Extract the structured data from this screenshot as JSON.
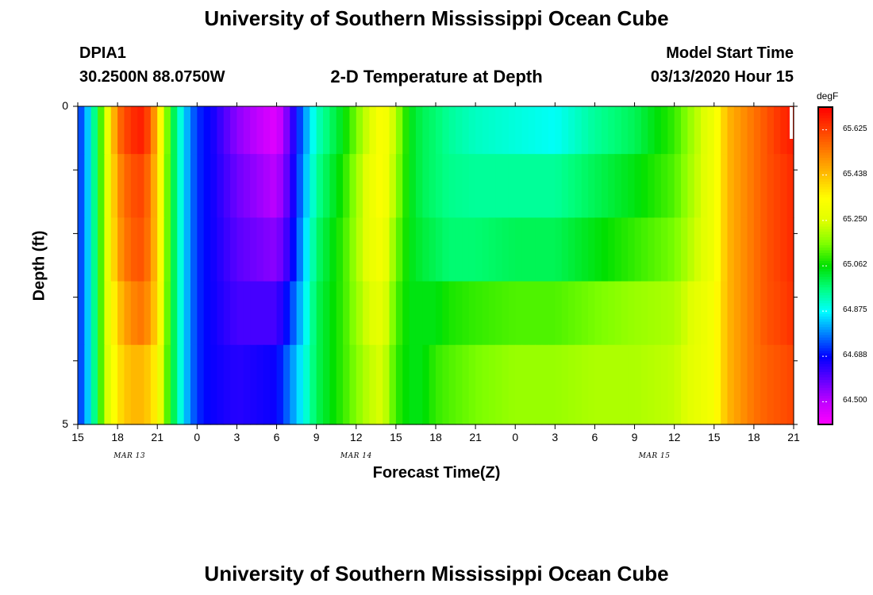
{
  "header": {
    "title_top": "University of Southern Mississippi Ocean Cube",
    "station_id": "DPIA1",
    "station_coords": "30.2500N 88.0750W",
    "plot_title": "2-D Temperature at Depth",
    "model_start_label": "Model Start Time",
    "model_start_value": "03/13/2020 Hour 15",
    "title_bottom": "University of Southern Mississippi Ocean Cube"
  },
  "colorbar": {
    "unit": "degF",
    "ticks": [
      "65.625",
      "65.438",
      "65.250",
      "65.062",
      "64.875",
      "64.688",
      "64.500"
    ],
    "range": [
      64.406,
      65.719
    ],
    "colors": [
      "#ff00ff",
      "#c000ff",
      "#6000ff",
      "#0000ff",
      "#0080ff",
      "#00ffff",
      "#00ff80",
      "#00e000",
      "#80ff00",
      "#e0ff00",
      "#ffff00",
      "#ffc000",
      "#ff8000",
      "#ff4000",
      "#ff0000"
    ]
  },
  "chart_data": {
    "type": "heatmap",
    "title": "2-D Temperature at Depth",
    "xlabel": "Forecast Time(Z)",
    "ylabel": "Depth (ft)",
    "x_tick_labels": [
      "15",
      "18",
      "21",
      "0",
      "3",
      "6",
      "9",
      "12",
      "15",
      "18",
      "21",
      "0",
      "3",
      "6",
      "9",
      "12",
      "15",
      "18",
      "21"
    ],
    "date_labels": [
      {
        "label": "MAR 13",
        "tick_index": 1.3
      },
      {
        "label": "MAR 14",
        "tick_index": 7.0
      },
      {
        "label": "MAR 15",
        "tick_index": 14.5
      }
    ],
    "y_tick_labels": [
      "0",
      "5"
    ],
    "ylim": [
      0,
      5
    ],
    "x_range_hours": [
      0,
      54
    ],
    "depth_bands": [
      0.25,
      1.25,
      2.25,
      3.25,
      4.25,
      4.75
    ],
    "time_knots_hours": [
      0,
      1,
      2,
      3,
      4,
      5,
      6,
      7,
      8,
      9,
      10,
      12,
      15,
      16,
      17,
      18,
      20,
      22,
      23,
      24,
      25,
      26,
      27,
      28,
      30,
      33,
      36,
      39,
      42,
      45,
      48,
      49,
      50,
      51,
      52,
      53,
      54
    ],
    "z_units": "degF",
    "values": [
      [
        64.7,
        64.88,
        65.2,
        65.55,
        65.65,
        65.68,
        65.45,
        65.05,
        64.85,
        64.72,
        64.68,
        64.55,
        64.45,
        64.6,
        64.78,
        64.92,
        65.05,
        65.25,
        65.35,
        65.2,
        65.05,
        65.0,
        64.98,
        64.95,
        64.92,
        64.9,
        64.88,
        64.95,
        65.0,
        65.1,
        65.3,
        65.45,
        65.5,
        65.55,
        65.6,
        65.65,
        65.68
      ],
      [
        64.7,
        64.88,
        65.2,
        65.5,
        65.6,
        65.62,
        65.42,
        65.05,
        64.85,
        64.72,
        64.68,
        64.58,
        64.5,
        64.62,
        64.8,
        64.95,
        65.08,
        65.28,
        65.35,
        65.18,
        65.05,
        65.0,
        64.98,
        64.96,
        64.95,
        64.95,
        64.95,
        65.0,
        65.05,
        65.12,
        65.3,
        65.45,
        65.5,
        65.55,
        65.6,
        65.63,
        65.66
      ],
      [
        64.7,
        64.88,
        65.2,
        65.48,
        65.58,
        65.6,
        65.42,
        65.05,
        64.85,
        64.72,
        64.68,
        64.6,
        64.55,
        64.65,
        64.82,
        64.98,
        65.1,
        65.28,
        65.32,
        65.15,
        65.05,
        65.02,
        65.0,
        64.98,
        64.98,
        65.0,
        65.0,
        65.05,
        65.1,
        65.15,
        65.3,
        65.45,
        65.5,
        65.55,
        65.6,
        65.63,
        65.66
      ],
      [
        64.7,
        64.88,
        65.2,
        65.42,
        65.52,
        65.55,
        65.4,
        65.05,
        64.85,
        64.72,
        64.68,
        64.62,
        64.62,
        64.72,
        64.85,
        65.0,
        65.1,
        65.25,
        65.28,
        65.12,
        65.05,
        65.05,
        65.05,
        65.08,
        65.1,
        65.12,
        65.12,
        65.15,
        65.18,
        65.2,
        65.32,
        65.45,
        65.5,
        65.55,
        65.6,
        65.62,
        65.65
      ],
      [
        64.7,
        64.88,
        65.2,
        65.38,
        65.45,
        65.45,
        65.35,
        65.05,
        64.85,
        64.72,
        64.68,
        64.65,
        64.68,
        64.78,
        64.88,
        65.0,
        65.1,
        65.22,
        65.25,
        65.1,
        65.05,
        65.05,
        65.1,
        65.12,
        65.15,
        65.18,
        65.18,
        65.2,
        65.2,
        65.22,
        65.32,
        65.45,
        65.5,
        65.55,
        65.58,
        65.6,
        65.62
      ]
    ]
  }
}
